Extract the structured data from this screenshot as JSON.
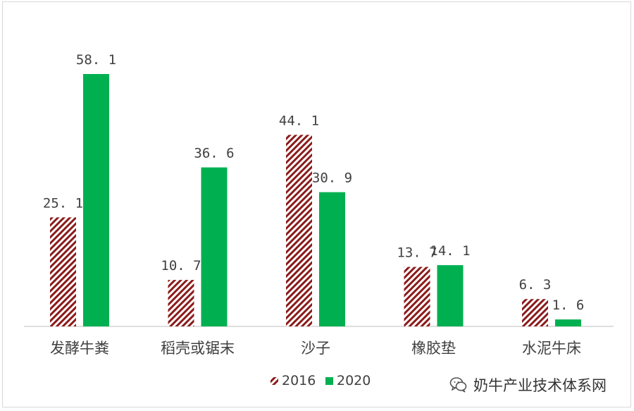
{
  "chart_data": {
    "type": "bar",
    "categories": [
      "发酵牛粪",
      "稻壳或锯末",
      "沙子",
      "橡胶垫",
      "水泥牛床"
    ],
    "series": [
      {
        "name": "2016",
        "values": [
          25.1,
          10.7,
          44.1,
          13.7,
          6.3
        ],
        "labels": [
          "25. 1",
          "10. 7",
          "44. 1",
          "13. 7",
          "6. 3"
        ],
        "color": "#8b1a1a",
        "pattern": "diagonal-stripes"
      },
      {
        "name": "2020",
        "values": [
          58.1,
          36.6,
          30.9,
          14.1,
          1.6
        ],
        "labels": [
          "58. 1",
          "36. 6",
          "30. 9",
          "14. 1",
          "1. 6"
        ],
        "color": "#00b050",
        "pattern": "solid"
      }
    ],
    "ylim": [
      0,
      58.1
    ],
    "grid": false,
    "legend_position": "bottom"
  },
  "watermark": {
    "text": "奶牛产业技术体系网",
    "icon": "wechat-icon"
  }
}
